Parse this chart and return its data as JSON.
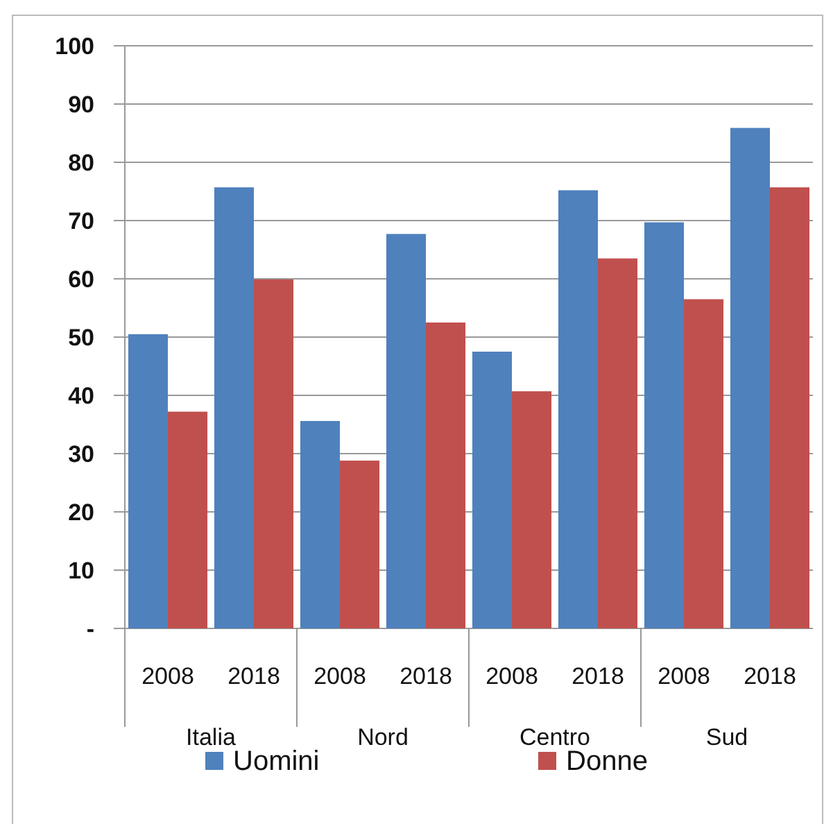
{
  "chart_data": {
    "type": "bar",
    "categories": [
      "2008",
      "2018",
      "2008",
      "2018",
      "2008",
      "2018",
      "2008",
      "2018"
    ],
    "annotations": [
      "Italia",
      "Nord",
      "Centro",
      "Sud"
    ],
    "series": [
      {
        "name": "Uomini",
        "color": "#4f81bd",
        "values": [
          50.5,
          75.7,
          35.6,
          67.7,
          47.5,
          75.2,
          69.7,
          85.9
        ]
      },
      {
        "name": "Donne",
        "color": "#c0504d",
        "values": [
          37.2,
          59.9,
          28.8,
          52.5,
          40.7,
          63.5,
          56.5,
          75.7
        ]
      }
    ],
    "ylim": [
      0,
      100
    ],
    "yticks": [
      {
        "value": 0,
        "label": "-"
      },
      10,
      20,
      30,
      40,
      50,
      60,
      70,
      80,
      90,
      100
    ],
    "grid": "y",
    "legend": "bottom"
  }
}
